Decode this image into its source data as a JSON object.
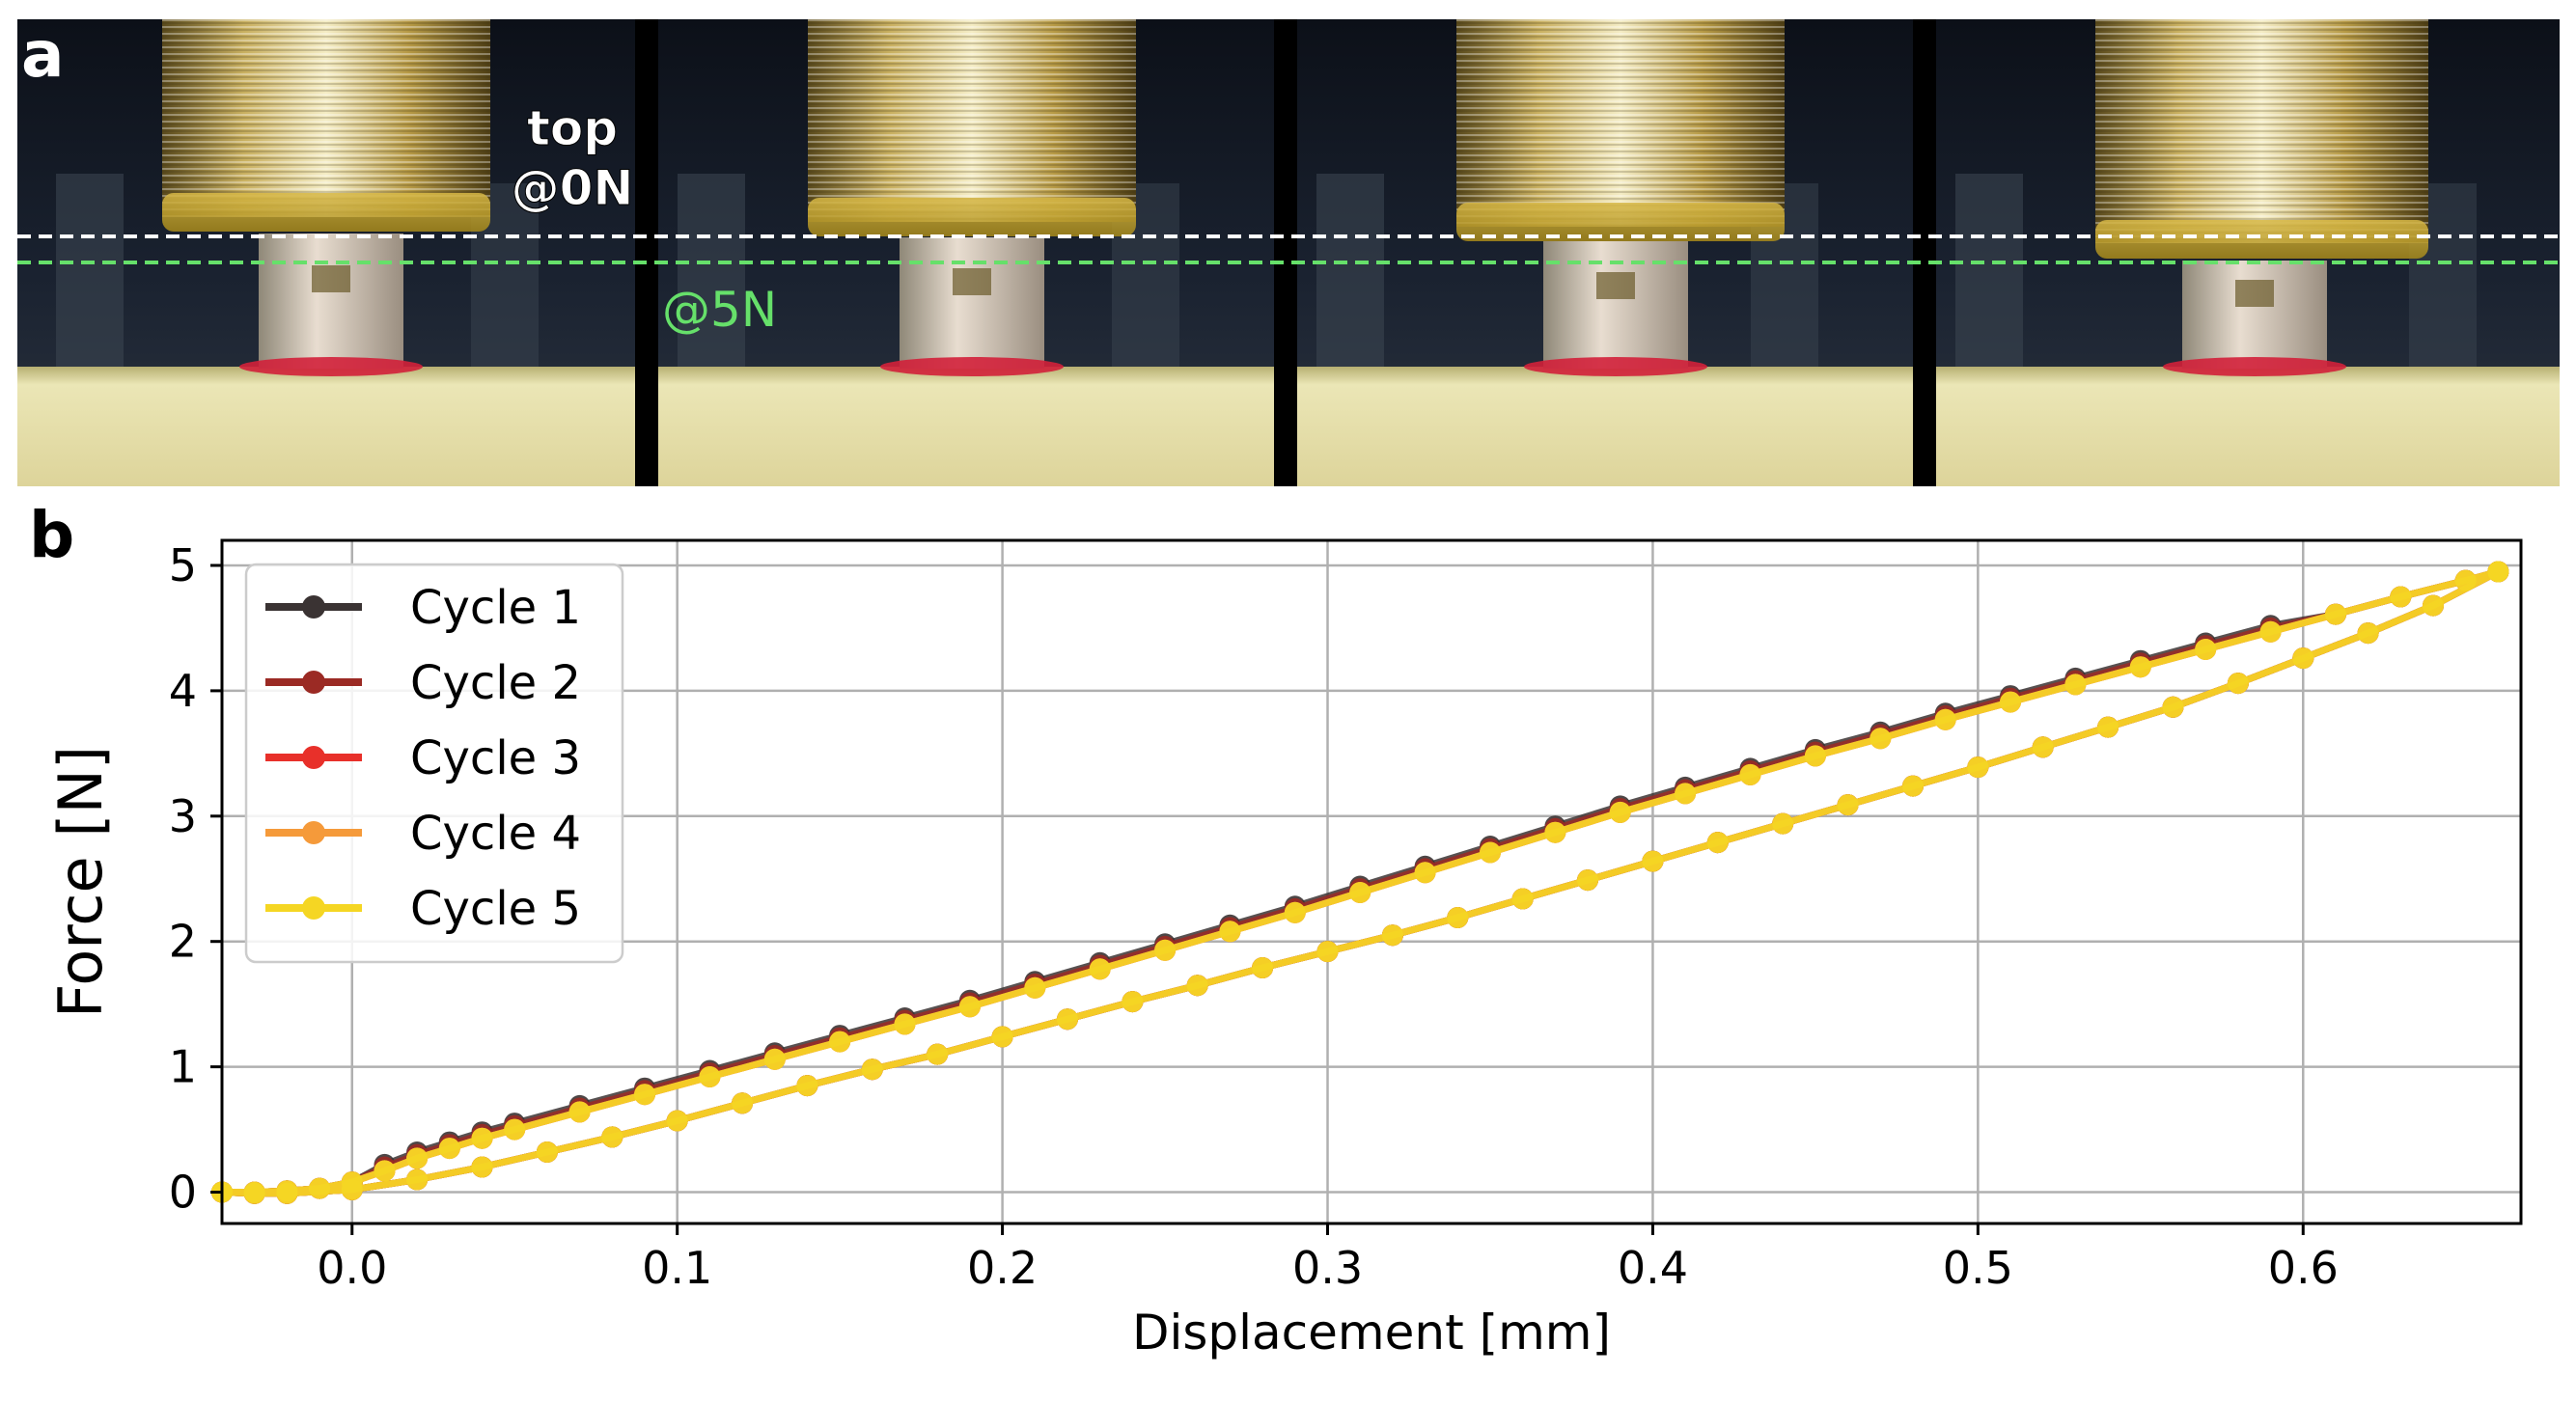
{
  "panels": {
    "a": "a",
    "b": "b"
  },
  "photo_annotations": {
    "top_label_line1": "top",
    "top_label_line2": "@0N",
    "force_label": "@5N"
  },
  "colors": {
    "cycle1": "#3a3333",
    "cycle2": "#9b2a24",
    "cycle3": "#e8302a",
    "cycle4": "#f59a3a",
    "cycle5": "#f5d623",
    "line_top": "#ffffff",
    "line_5n": "#66e06a"
  },
  "chart_data": {
    "type": "line",
    "xlabel": "Displacement [mm]",
    "ylabel": "Force [N]",
    "xlim": [
      -0.04,
      0.667
    ],
    "ylim": [
      -0.25,
      5.2
    ],
    "xticks": [
      0.0,
      0.1,
      0.2,
      0.3,
      0.4,
      0.5,
      0.6
    ],
    "xtick_labels": [
      "0.0",
      "0.1",
      "0.2",
      "0.3",
      "0.4",
      "0.5",
      "0.6"
    ],
    "yticks": [
      0,
      1,
      2,
      3,
      4,
      5
    ],
    "ytick_labels": [
      "0",
      "1",
      "2",
      "3",
      "4",
      "5"
    ],
    "grid": true,
    "legend_position": "top-left",
    "series": [
      {
        "name": "Cycle 1",
        "color": "#3a3333"
      },
      {
        "name": "Cycle 2",
        "color": "#9b2a24"
      },
      {
        "name": "Cycle 3",
        "color": "#e8302a"
      },
      {
        "name": "Cycle 4",
        "color": "#f59a3a"
      },
      {
        "name": "Cycle 5",
        "color": "#f5d623"
      }
    ],
    "loading_x": [
      -0.04,
      -0.03,
      -0.02,
      -0.01,
      0.0,
      0.01,
      0.02,
      0.03,
      0.04,
      0.05,
      0.07,
      0.09,
      0.11,
      0.13,
      0.15,
      0.17,
      0.19,
      0.21,
      0.23,
      0.25,
      0.27,
      0.29,
      0.31,
      0.33,
      0.35,
      0.37,
      0.39,
      0.41,
      0.43,
      0.45,
      0.47,
      0.49,
      0.51,
      0.53,
      0.55,
      0.57,
      0.59,
      0.61,
      0.63,
      0.65,
      0.66
    ],
    "loading_y": [
      0.0,
      0.0,
      0.01,
      0.03,
      0.08,
      0.17,
      0.27,
      0.35,
      0.43,
      0.5,
      0.64,
      0.78,
      0.92,
      1.06,
      1.2,
      1.34,
      1.48,
      1.63,
      1.78,
      1.93,
      2.08,
      2.23,
      2.39,
      2.55,
      2.71,
      2.87,
      3.03,
      3.18,
      3.33,
      3.48,
      3.62,
      3.77,
      3.91,
      4.05,
      4.19,
      4.33,
      4.47,
      4.61,
      4.75,
      4.88,
      4.95
    ],
    "unloading_x": [
      0.66,
      0.64,
      0.62,
      0.6,
      0.58,
      0.56,
      0.54,
      0.52,
      0.5,
      0.48,
      0.46,
      0.44,
      0.42,
      0.4,
      0.38,
      0.36,
      0.34,
      0.32,
      0.3,
      0.28,
      0.26,
      0.24,
      0.22,
      0.2,
      0.18,
      0.16,
      0.14,
      0.12,
      0.1,
      0.08,
      0.06,
      0.04,
      0.02,
      0.0,
      -0.02,
      -0.03,
      -0.04
    ],
    "unloading_y": [
      4.95,
      4.68,
      4.46,
      4.26,
      4.06,
      3.87,
      3.71,
      3.55,
      3.39,
      3.24,
      3.09,
      2.94,
      2.79,
      2.64,
      2.49,
      2.34,
      2.19,
      2.05,
      1.92,
      1.79,
      1.65,
      1.52,
      1.38,
      1.24,
      1.1,
      0.98,
      0.85,
      0.71,
      0.57,
      0.44,
      0.32,
      0.2,
      0.1,
      0.02,
      -0.01,
      -0.01,
      0.0
    ]
  }
}
